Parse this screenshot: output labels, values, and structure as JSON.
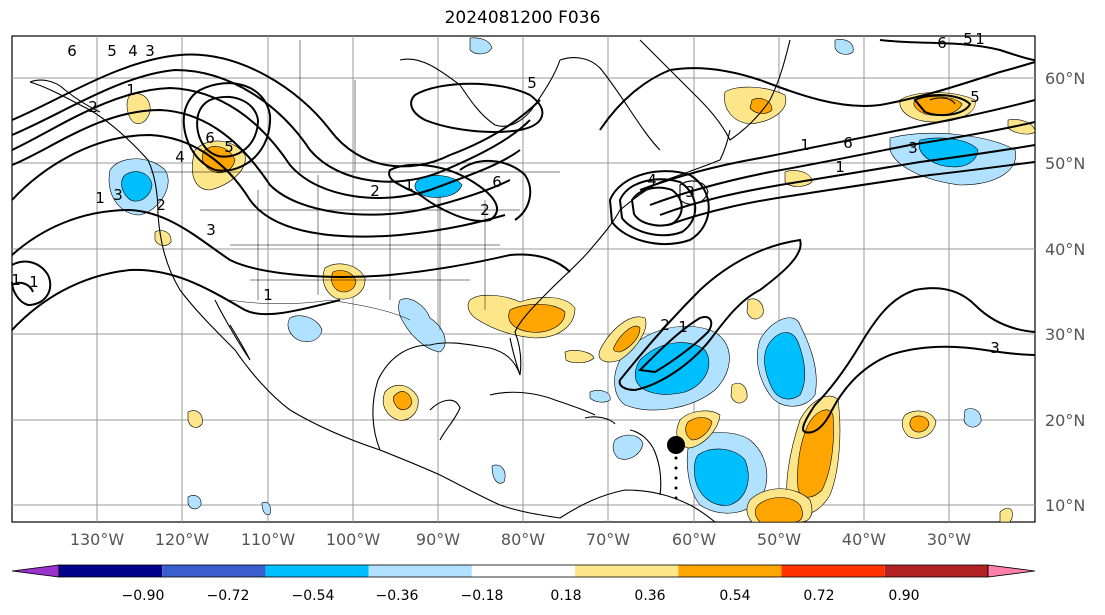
{
  "title": "2024081200 F036",
  "map": {
    "projection": "cylindrical",
    "lon_range": [
      -142,
      -22
    ],
    "lat_range": [
      8,
      65
    ],
    "lat_labels": [
      "60°N",
      "50°N",
      "40°N",
      "30°N",
      "20°N",
      "10°N"
    ],
    "lon_labels": [
      "130°W",
      "120°W",
      "110°W",
      "100°W",
      "90°W",
      "80°W",
      "70°W",
      "60°W",
      "50°W",
      "40°W",
      "30°W"
    ],
    "storm_marker": {
      "lon": -61,
      "lat": 17,
      "color": "#000000"
    }
  },
  "colorbar": {
    "ticks": [
      "−0.90",
      "−0.72",
      "−0.54",
      "−0.36",
      "−0.18",
      "0.18",
      "0.36",
      "0.54",
      "0.72",
      "0.90"
    ],
    "colors": [
      "#9932cc",
      "#00008b",
      "#3a5fcd",
      "#00bfff",
      "#b0e2ff",
      "#ffffff",
      "#fde68a",
      "#ffa500",
      "#ff3300",
      "#b22222",
      "#ff80aa"
    ]
  },
  "contour_labels": [
    "6",
    "5",
    "4",
    "3",
    "2",
    "1",
    "6",
    "5",
    "4",
    "3",
    "1",
    "2",
    "3",
    "1",
    "2",
    "1",
    "6",
    "5",
    "4",
    "3",
    "1",
    "5",
    "6",
    "5",
    "3",
    "1",
    "1",
    "1",
    "2",
    "1",
    "3",
    "2",
    "1",
    "6"
  ]
}
